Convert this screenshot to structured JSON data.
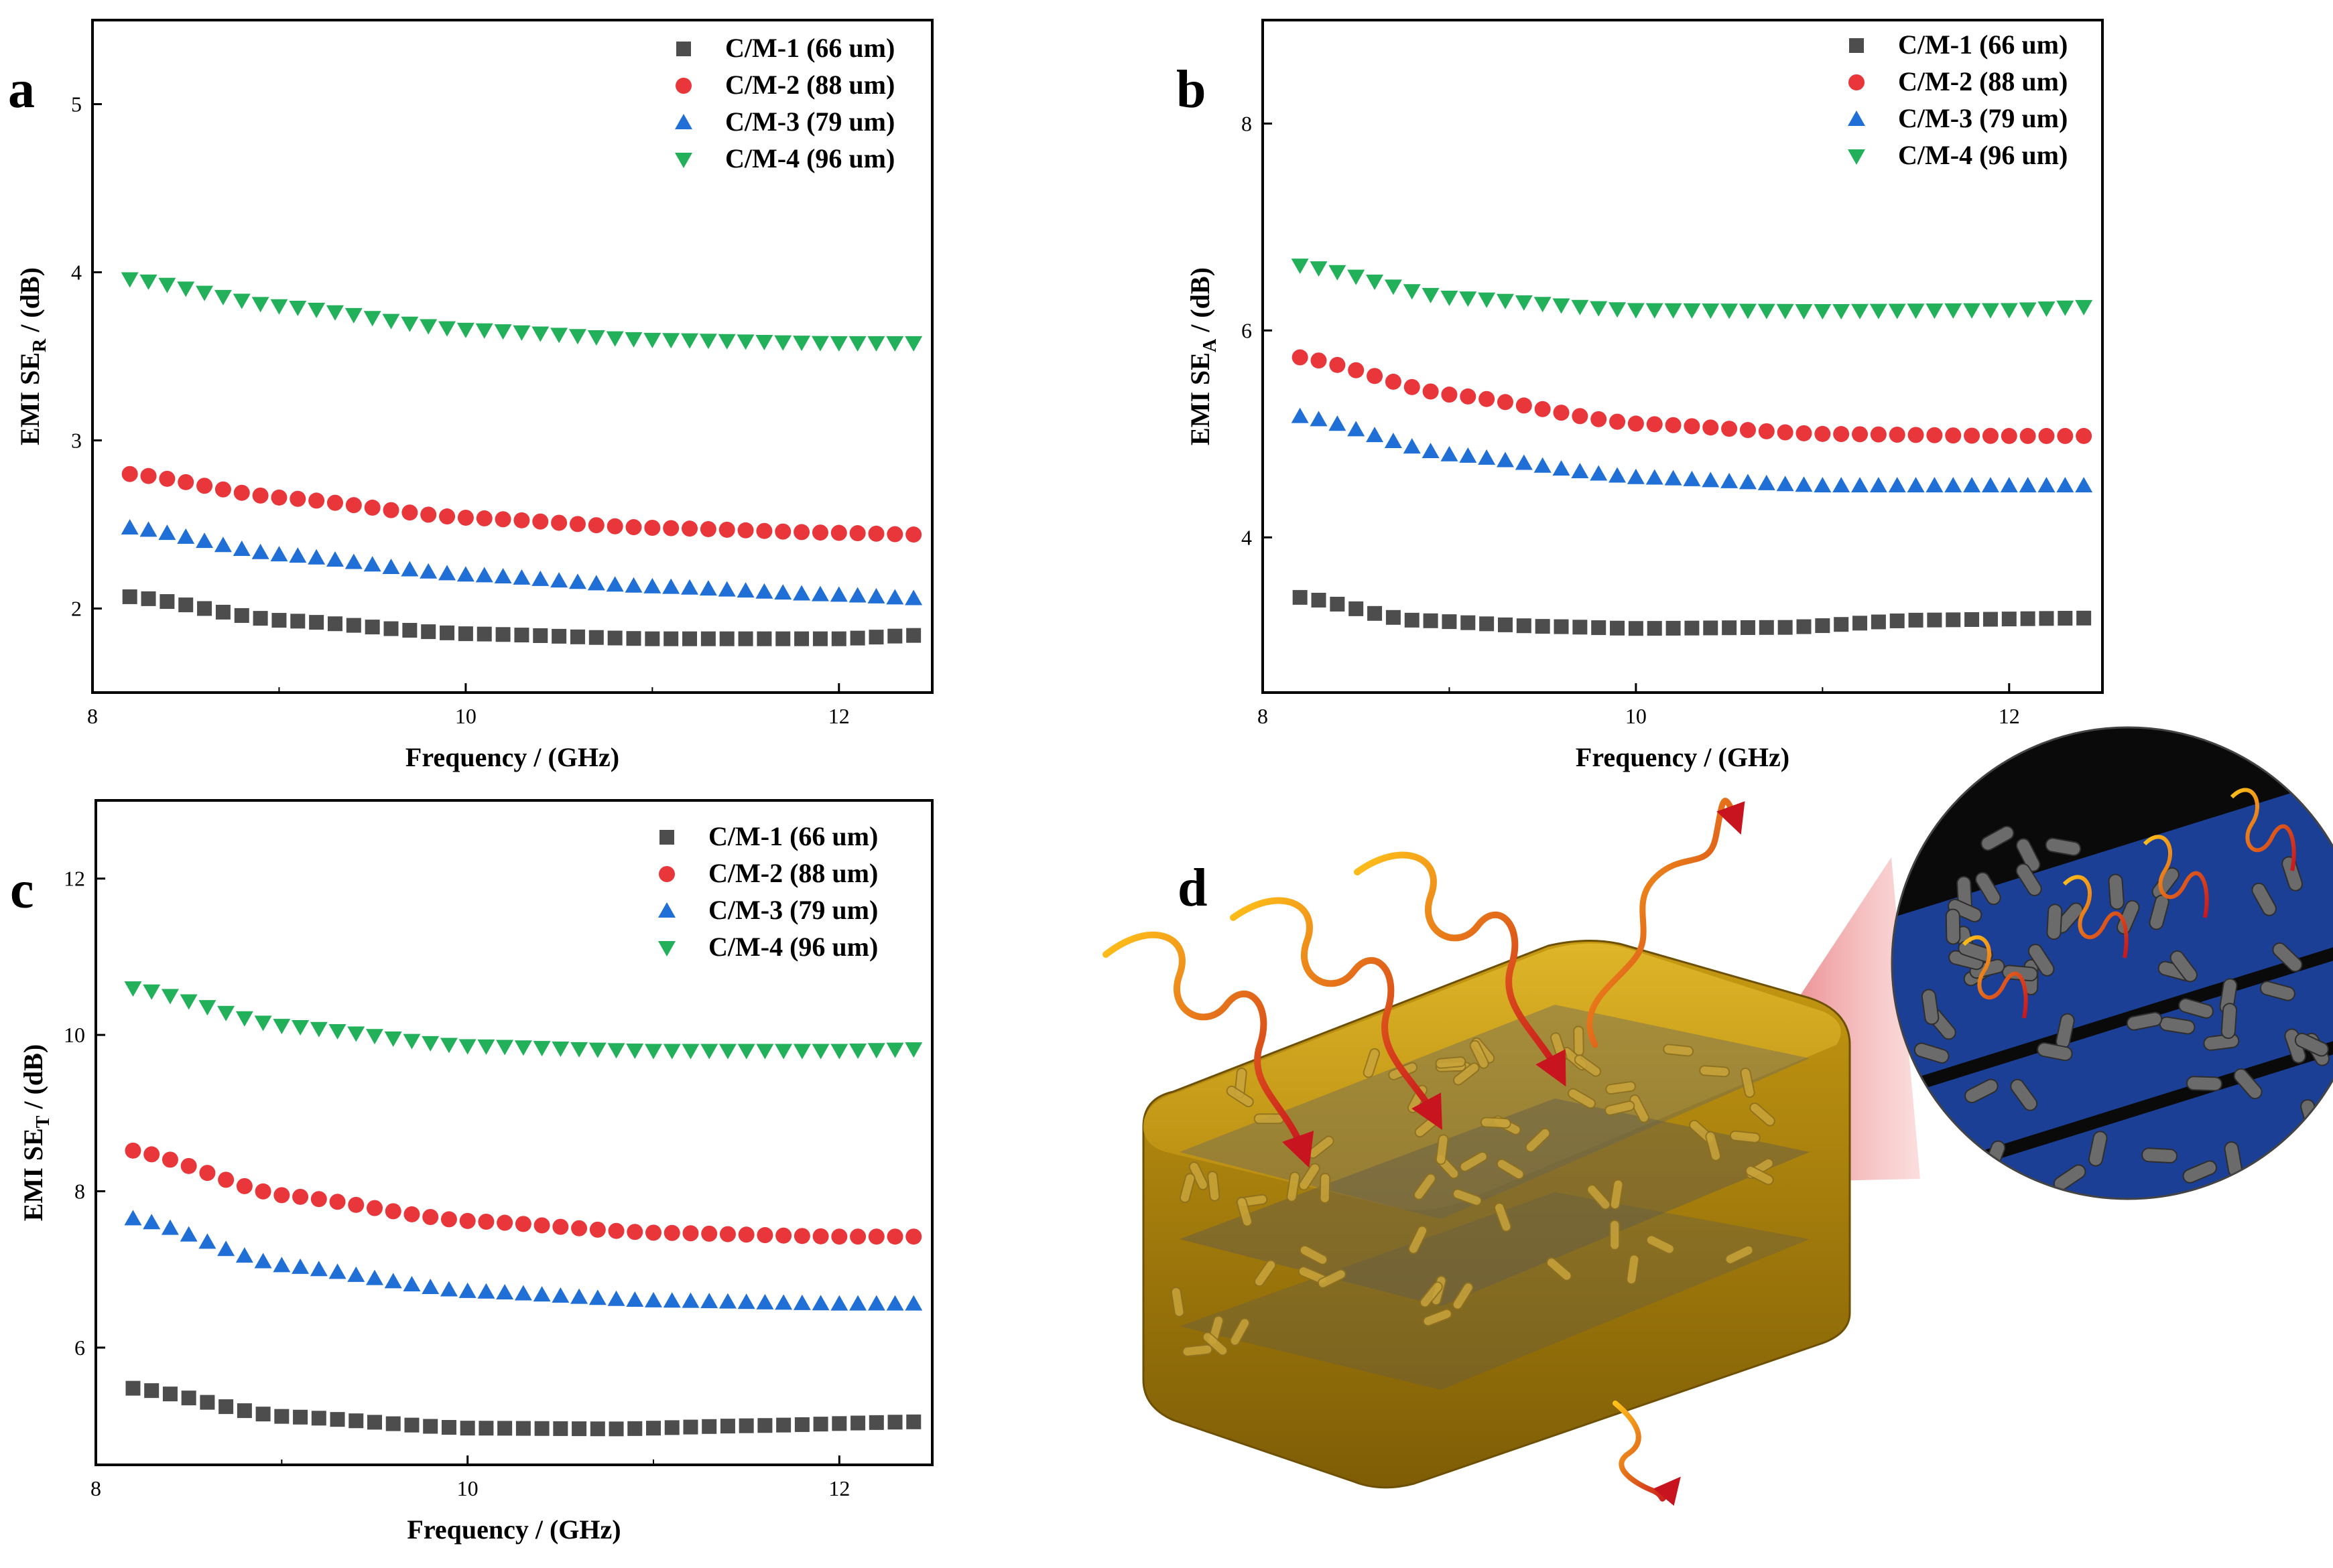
{
  "figure": {
    "panel_d_letter": "d",
    "colors": {
      "series1": "#4d4d4d",
      "series2": "#e8363a",
      "series3": "#1f6fd6",
      "series4": "#22b05a"
    }
  },
  "chart_data": [
    {
      "panel": "a",
      "type": "scatter",
      "title": "",
      "xlabel": "Frequency / (GHz)",
      "ylabel": "EMI SE",
      "ylabel_sub": "R",
      "ylabel_suffix": " / (dB)",
      "xlim": [
        8,
        12.5
      ],
      "ylim": [
        1.5,
        5.5
      ],
      "xticks": [
        8,
        10,
        12
      ],
      "yticks": [
        2,
        3,
        4,
        5
      ],
      "x": {
        "start": 8.2,
        "end": 12.4,
        "n": 43
      },
      "legend_position": "top-right",
      "series": [
        {
          "name": "C/M-1 (66 um)",
          "marker": "square",
          "color": "#4d4d4d",
          "knots": [
            [
              8.2,
              2.07
            ],
            [
              9,
              1.93
            ],
            [
              10,
              1.85
            ],
            [
              11,
              1.82
            ],
            [
              12,
              1.82
            ],
            [
              12.4,
              1.84
            ]
          ]
        },
        {
          "name": "C/M-2 (88 um)",
          "marker": "circle",
          "color": "#e8363a",
          "knots": [
            [
              8.2,
              2.8
            ],
            [
              9,
              2.66
            ],
            [
              10,
              2.54
            ],
            [
              11,
              2.48
            ],
            [
              12,
              2.45
            ],
            [
              12.4,
              2.44
            ]
          ]
        },
        {
          "name": "C/M-3 (79 um)",
          "marker": "triangle",
          "color": "#1f6fd6",
          "knots": [
            [
              8.2,
              2.48
            ],
            [
              9,
              2.32
            ],
            [
              10,
              2.2
            ],
            [
              11,
              2.13
            ],
            [
              12,
              2.08
            ],
            [
              12.4,
              2.06
            ]
          ]
        },
        {
          "name": "C/M-4 (96 um)",
          "marker": "tri-down",
          "color": "#22b05a",
          "knots": [
            [
              8.2,
              3.96
            ],
            [
              9,
              3.8
            ],
            [
              10,
              3.66
            ],
            [
              11,
              3.6
            ],
            [
              12,
              3.58
            ],
            [
              12.4,
              3.58
            ]
          ]
        }
      ]
    },
    {
      "panel": "b",
      "type": "scatter",
      "title": "",
      "xlabel": "Frequency / (GHz)",
      "ylabel": "EMI SE",
      "ylabel_sub": "A",
      "ylabel_suffix": " / (dB)",
      "xlim": [
        8,
        12.5
      ],
      "ylim": [
        2.5,
        9.0
      ],
      "xticks": [
        8,
        10,
        12
      ],
      "yticks": [
        4,
        6,
        8
      ],
      "x": {
        "start": 8.2,
        "end": 12.4,
        "n": 43
      },
      "legend_position": "top-right",
      "series": [
        {
          "name": "C/M-1 (66 um)",
          "marker": "square",
          "color": "#4d4d4d",
          "knots": [
            [
              8.2,
              3.42
            ],
            [
              8.8,
              3.2
            ],
            [
              9.5,
              3.14
            ],
            [
              10,
              3.12
            ],
            [
              10.8,
              3.13
            ],
            [
              11.5,
              3.2
            ],
            [
              12.4,
              3.22
            ]
          ]
        },
        {
          "name": "C/M-2 (88 um)",
          "marker": "circle",
          "color": "#e8363a",
          "knots": [
            [
              8.2,
              5.74
            ],
            [
              9,
              5.38
            ],
            [
              10,
              5.1
            ],
            [
              11,
              5.0
            ],
            [
              12,
              4.98
            ],
            [
              12.4,
              4.98
            ]
          ]
        },
        {
          "name": "C/M-3 (79 um)",
          "marker": "triangle",
          "color": "#1f6fd6",
          "knots": [
            [
              8.2,
              5.17
            ],
            [
              9,
              4.8
            ],
            [
              10,
              4.58
            ],
            [
              11,
              4.5
            ],
            [
              12,
              4.5
            ],
            [
              12.4,
              4.5
            ]
          ]
        },
        {
          "name": "C/M-4 (96 um)",
          "marker": "tri-down",
          "color": "#22b05a",
          "knots": [
            [
              8.2,
              6.63
            ],
            [
              9,
              6.32
            ],
            [
              10,
              6.2
            ],
            [
              11,
              6.19
            ],
            [
              12,
              6.2
            ],
            [
              12.4,
              6.23
            ]
          ]
        }
      ]
    },
    {
      "panel": "c",
      "type": "scatter",
      "title": "",
      "xlabel": "Frequency / (GHz)",
      "ylabel": "EMI SE",
      "ylabel_sub": "T",
      "ylabel_suffix": " / (dB)",
      "xlim": [
        8,
        12.5
      ],
      "ylim": [
        4.5,
        13.0
      ],
      "xticks": [
        8,
        10,
        12
      ],
      "yticks": [
        6,
        8,
        10,
        12
      ],
      "x": {
        "start": 8.2,
        "end": 12.4,
        "n": 43
      },
      "legend_position": "top-right",
      "series": [
        {
          "name": "C/M-1 (66 um)",
          "marker": "square",
          "color": "#4d4d4d",
          "knots": [
            [
              8.2,
              5.48
            ],
            [
              9,
              5.12
            ],
            [
              10,
              4.97
            ],
            [
              10.8,
              4.96
            ],
            [
              11.5,
              5.0
            ],
            [
              12.4,
              5.05
            ]
          ]
        },
        {
          "name": "C/M-2 (88 um)",
          "marker": "circle",
          "color": "#e8363a",
          "knots": [
            [
              8.2,
              8.52
            ],
            [
              9,
              7.95
            ],
            [
              10,
              7.62
            ],
            [
              11,
              7.47
            ],
            [
              12,
              7.42
            ],
            [
              12.4,
              7.42
            ]
          ]
        },
        {
          "name": "C/M-3 (79 um)",
          "marker": "triangle",
          "color": "#1f6fd6",
          "knots": [
            [
              8.2,
              7.65
            ],
            [
              9,
              7.05
            ],
            [
              10,
              6.72
            ],
            [
              11,
              6.6
            ],
            [
              12,
              6.56
            ],
            [
              12.4,
              6.56
            ]
          ]
        },
        {
          "name": "C/M-4 (96 um)",
          "marker": "tri-down",
          "color": "#22b05a",
          "knots": [
            [
              8.2,
              10.6
            ],
            [
              9,
              10.12
            ],
            [
              10,
              9.86
            ],
            [
              11,
              9.8
            ],
            [
              12,
              9.8
            ],
            [
              12.4,
              9.82
            ]
          ]
        }
      ]
    }
  ]
}
